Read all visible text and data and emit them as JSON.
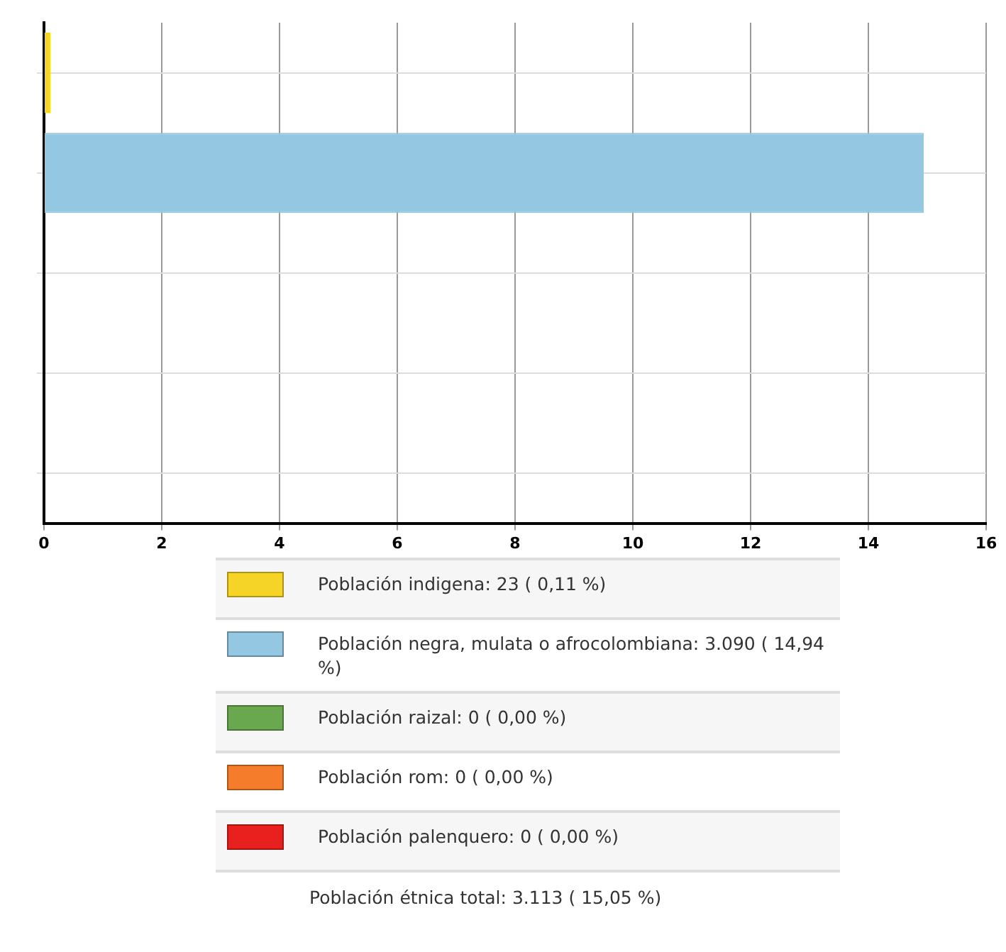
{
  "chart_data": {
    "type": "bar",
    "orientation": "horizontal",
    "stacked": true,
    "categories": [
      null,
      null,
      null,
      null,
      null
    ],
    "series": [
      {
        "name": "Población indigena:  23 ( 0,11 %)",
        "color": "#f5d327",
        "values": [
          0.11,
          null,
          null,
          null,
          null
        ]
      },
      {
        "name": "Población negra, mulata o afrocolombiana:  3.090 ( 14,94 %)",
        "color": "#94c8e2",
        "values": [
          null,
          14.94,
          null,
          null,
          null
        ]
      },
      {
        "name": "Población raizal:  0 ( 0,00 %)",
        "color": "#6aa84f",
        "values": [
          null,
          null,
          0,
          null,
          null
        ]
      },
      {
        "name": "Población rom:  0 ( 0,00 %)",
        "color": "#f47c2a",
        "values": [
          null,
          null,
          null,
          0,
          null
        ]
      },
      {
        "name": "Población palenquero:  0 ( 0,00 %)",
        "color": "#e8201e",
        "values": [
          null,
          null,
          null,
          null,
          0
        ]
      }
    ],
    "xlim": [
      0,
      16
    ],
    "xticks": [
      0,
      2,
      4,
      6,
      8,
      10,
      12,
      14,
      16
    ],
    "grid": true,
    "legend": "bottom",
    "annotations": [
      "Población étnica total:  3.113 ( 15,05 %)"
    ]
  }
}
